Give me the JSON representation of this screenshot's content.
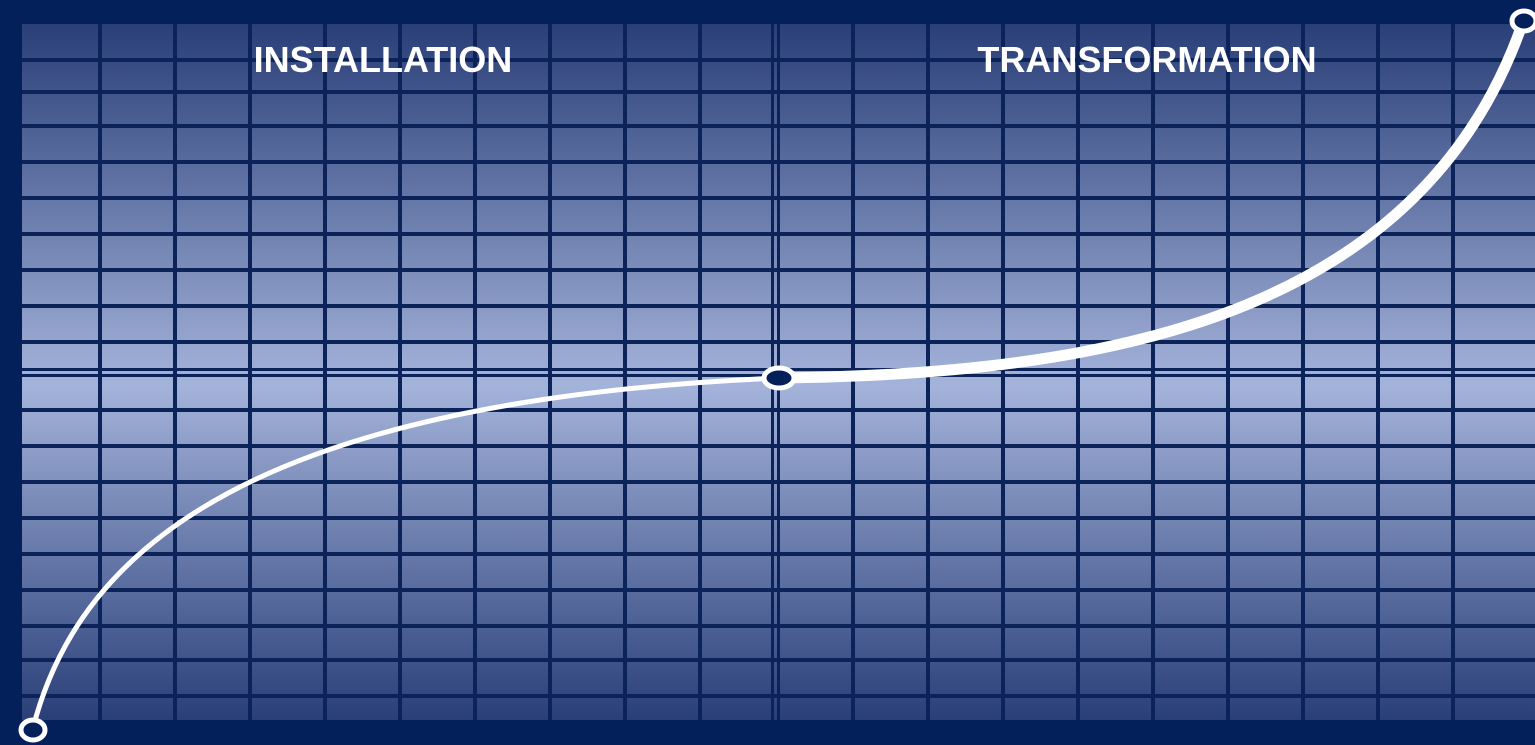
{
  "labels": {
    "left_phase": "INSTALLATION",
    "right_phase": "TRANSFORMATION"
  },
  "colors": {
    "background": "#03205a",
    "grid_line": "#0b2359",
    "cell_dark": "#2a3f78",
    "cell_light": "#a4b3da",
    "curve": "#ffffff",
    "marker_fill": "#03205a",
    "marker_stroke": "#ffffff"
  },
  "markers": [
    "start",
    "turning-point",
    "end"
  ]
}
